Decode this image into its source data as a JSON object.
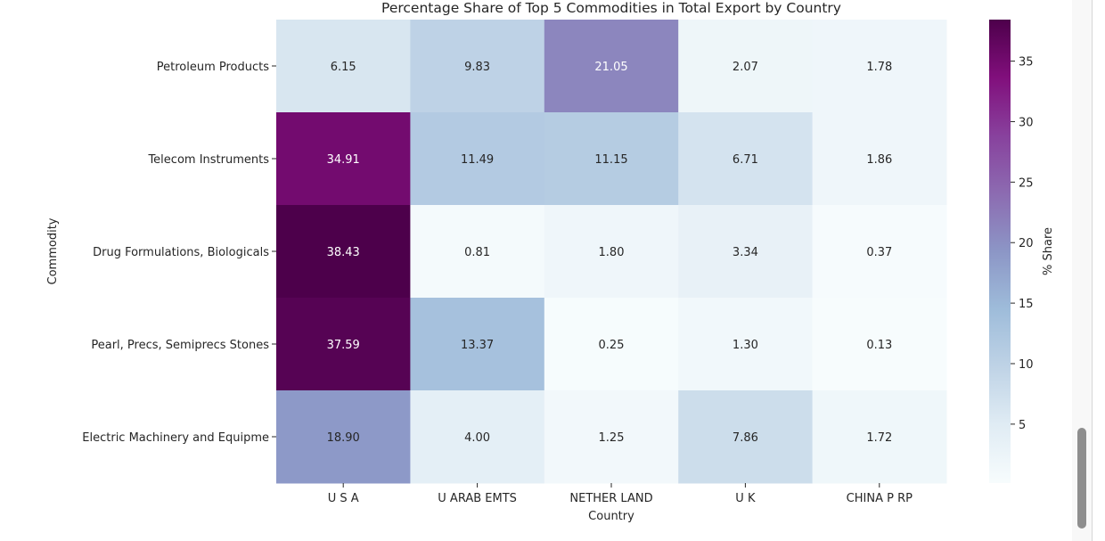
{
  "chart_data": {
    "type": "heatmap",
    "title": "Percentage Share of Top 5 Commodities in Total Export by Country",
    "xlabel": "Country",
    "ylabel": "Commodity",
    "x_categories": [
      "U S A",
      "U ARAB EMTS",
      "NETHER LAND",
      "U K",
      "CHINA P RP"
    ],
    "y_categories": [
      "Petroleum Products",
      "Telecom Instruments",
      "Drug Formulations, Biologicals",
      "Pearl, Precs, Semiprecs Stones",
      "Electric Machinery and Equipme"
    ],
    "values": [
      [
        6.15,
        9.83,
        21.05,
        2.07,
        1.78
      ],
      [
        34.91,
        11.49,
        11.15,
        6.71,
        1.86
      ],
      [
        38.43,
        0.81,
        1.8,
        3.34,
        0.37
      ],
      [
        37.59,
        13.37,
        0.25,
        1.3,
        0.13
      ],
      [
        18.9,
        4.0,
        1.25,
        7.86,
        1.72
      ]
    ],
    "value_labels": [
      [
        "6.15",
        "9.83",
        "21.05",
        "2.07",
        "1.78"
      ],
      [
        "34.91",
        "11.49",
        "11.15",
        "6.71",
        "1.86"
      ],
      [
        "38.43",
        "0.81",
        "1.80",
        "3.34",
        "0.37"
      ],
      [
        "37.59",
        "13.37",
        "0.25",
        "1.30",
        "0.13"
      ],
      [
        "18.90",
        "4.00",
        "1.25",
        "7.86",
        "1.72"
      ]
    ],
    "colormap": "BuPu",
    "colormap_stops": [
      "#f7fcfd",
      "#e0ecf4",
      "#bfd3e6",
      "#9ebcda",
      "#8c96c6",
      "#8c6bb1",
      "#88419d",
      "#810f7c",
      "#4d004b"
    ],
    "colorbar": {
      "label": "% Share",
      "range": [
        0.13,
        38.43
      ],
      "ticks": [
        "5",
        "10",
        "15",
        "20",
        "25",
        "30",
        "35"
      ],
      "tick_values": [
        5,
        10,
        15,
        20,
        25,
        30,
        35
      ]
    },
    "grid": false,
    "legend": "colorbar-right"
  }
}
